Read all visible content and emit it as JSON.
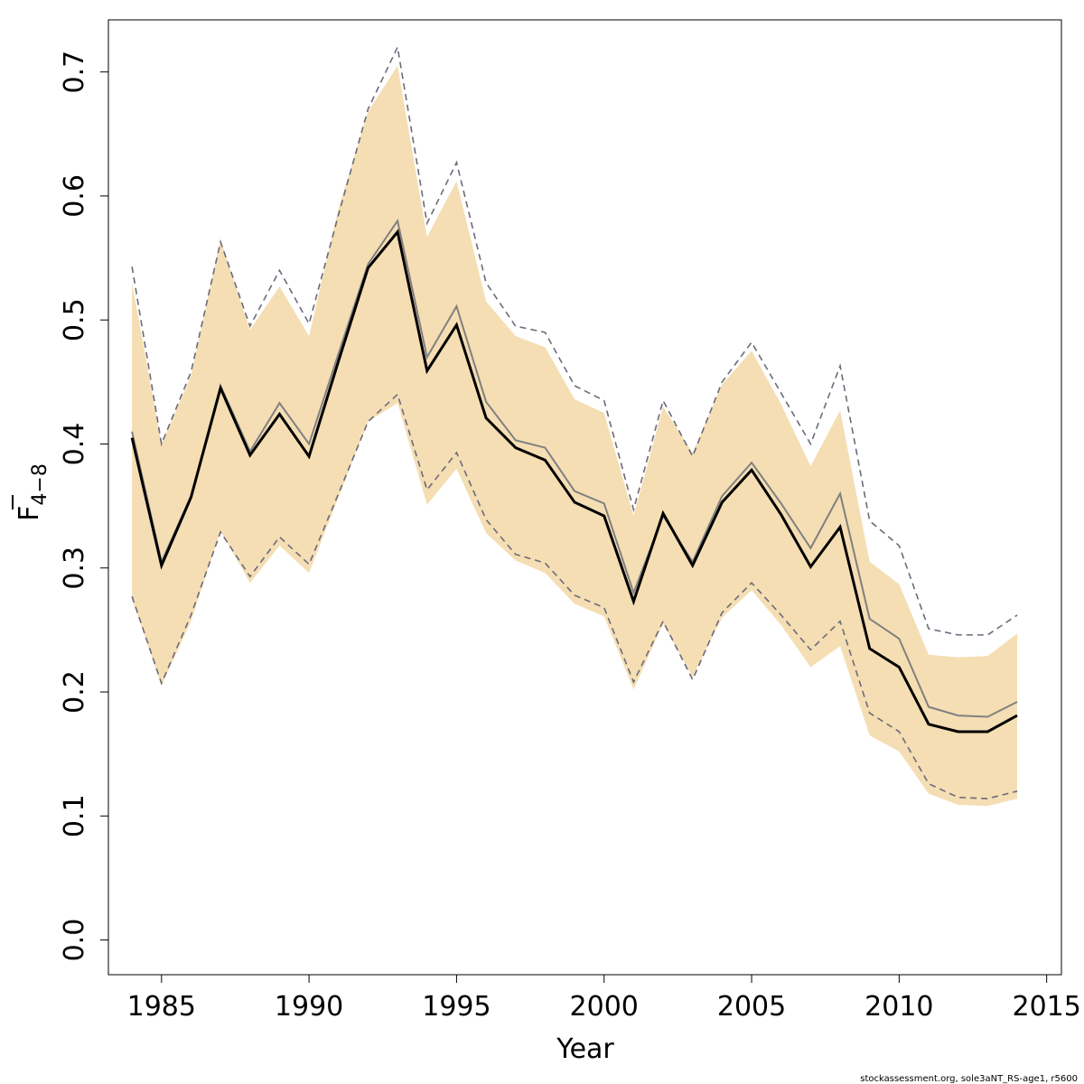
{
  "chart_data": {
    "type": "line",
    "xlabel": "Year",
    "ylabel": {
      "main": "F",
      "subscript": "4−8",
      "overline": true
    },
    "xlim": [
      1983.2,
      2015.5
    ],
    "ylim": [
      -0.028,
      0.742
    ],
    "xticks": [
      1985,
      1990,
      1995,
      2000,
      2005,
      2010,
      2015
    ],
    "yticks": [
      0.0,
      0.1,
      0.2,
      0.3,
      0.4,
      0.5,
      0.6,
      0.7
    ],
    "ytick_labels": [
      "0.0",
      "0.1",
      "0.2",
      "0.3",
      "0.4",
      "0.5",
      "0.6",
      "0.7"
    ],
    "grid": false,
    "colors": {
      "band": "#f5deb3",
      "estimate": "#000000",
      "alternative": "#808080",
      "dashed_ci": "#6b6b7b",
      "frame": "#000000"
    },
    "x": [
      1984,
      1985,
      1986,
      1987,
      1988,
      1989,
      1990,
      1991,
      1992,
      1993,
      1994,
      1995,
      1996,
      1997,
      1998,
      1999,
      2000,
      2001,
      2002,
      2003,
      2004,
      2005,
      2006,
      2007,
      2008,
      2009,
      2010,
      2011,
      2012,
      2013,
      2014
    ],
    "band": {
      "upper": [
        0.53,
        0.4,
        0.455,
        0.565,
        0.492,
        0.527,
        0.487,
        0.59,
        0.668,
        0.705,
        0.567,
        0.612,
        0.515,
        0.487,
        0.478,
        0.436,
        0.425,
        0.342,
        0.43,
        0.393,
        0.448,
        0.475,
        0.432,
        0.382,
        0.427,
        0.305,
        0.287,
        0.23,
        0.228,
        0.229,
        0.247
      ],
      "lower": [
        0.275,
        0.205,
        0.257,
        0.33,
        0.288,
        0.318,
        0.296,
        0.357,
        0.418,
        0.433,
        0.351,
        0.38,
        0.328,
        0.306,
        0.296,
        0.271,
        0.261,
        0.202,
        0.255,
        0.212,
        0.26,
        0.282,
        0.254,
        0.22,
        0.237,
        0.165,
        0.152,
        0.118,
        0.109,
        0.108,
        0.114
      ]
    },
    "series": [
      {
        "name": "",
        "style": "solid-thick",
        "values": [
          0.405,
          0.302,
          0.357,
          0.445,
          0.391,
          0.424,
          0.39,
          0.467,
          0.542,
          0.571,
          0.459,
          0.496,
          0.421,
          0.397,
          0.387,
          0.353,
          0.342,
          0.273,
          0.344,
          0.302,
          0.353,
          0.379,
          0.343,
          0.301,
          0.333,
          0.235,
          0.22,
          0.174,
          0.168,
          0.168,
          0.181
        ]
      },
      {
        "name": "",
        "style": "solid-thin",
        "values": [
          0.41,
          0.305,
          0.358,
          0.447,
          0.394,
          0.433,
          0.4,
          0.473,
          0.545,
          0.58,
          0.47,
          0.511,
          0.434,
          0.403,
          0.397,
          0.362,
          0.352,
          0.28,
          0.342,
          0.305,
          0.358,
          0.385,
          0.352,
          0.316,
          0.36,
          0.259,
          0.243,
          0.188,
          0.181,
          0.18,
          0.192
        ]
      },
      {
        "name": "",
        "style": "dashed",
        "values": [
          0.543,
          0.4,
          0.458,
          0.563,
          0.495,
          0.54,
          0.497,
          0.585,
          0.67,
          0.72,
          0.578,
          0.627,
          0.53,
          0.495,
          0.49,
          0.447,
          0.435,
          0.347,
          0.435,
          0.39,
          0.45,
          0.482,
          0.441,
          0.4,
          0.463,
          0.338,
          0.318,
          0.251,
          0.246,
          0.246,
          0.262
        ]
      },
      {
        "name": "",
        "style": "dashed",
        "values": [
          0.277,
          0.207,
          0.262,
          0.329,
          0.293,
          0.325,
          0.303,
          0.36,
          0.418,
          0.44,
          0.363,
          0.393,
          0.339,
          0.311,
          0.304,
          0.278,
          0.268,
          0.208,
          0.257,
          0.21,
          0.264,
          0.288,
          0.262,
          0.234,
          0.257,
          0.183,
          0.168,
          0.126,
          0.115,
          0.114,
          0.12
        ]
      }
    ],
    "footnote": "stockassessment.org, sole3aNT_RS-age1, r5600"
  }
}
